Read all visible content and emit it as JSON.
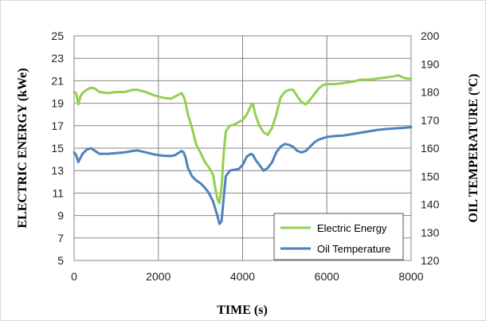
{
  "chart_data": {
    "type": "line",
    "title": "",
    "xlabel": "TIME (s)",
    "ylabel_left": "ELECTRIC  ENERGY (kWe)",
    "ylabel_right": "OIL TEMPERATURE  (ºC)",
    "xlim": [
      0,
      8000
    ],
    "ylim_left": [
      5,
      25
    ],
    "ylim_right": [
      120,
      200
    ],
    "xticks": [
      0,
      2000,
      4000,
      6000,
      8000
    ],
    "yticks_left": [
      5,
      7,
      9,
      11,
      13,
      15,
      17,
      19,
      21,
      23,
      25
    ],
    "yticks_right": [
      120,
      130,
      140,
      150,
      160,
      170,
      180,
      190,
      200
    ],
    "grid": true,
    "legend_position": "bottom-right",
    "series": [
      {
        "name": "Electric Energy",
        "axis": "left",
        "color": "#92d050",
        "x": [
          0,
          50,
          100,
          150,
          200,
          300,
          400,
          500,
          600,
          800,
          1000,
          1200,
          1400,
          1500,
          1700,
          1900,
          2100,
          2300,
          2500,
          2550,
          2600,
          2650,
          2700,
          2800,
          2900,
          3000,
          3100,
          3200,
          3300,
          3350,
          3400,
          3450,
          3500,
          3550,
          3600,
          3700,
          3800,
          3900,
          4000,
          4100,
          4200,
          4250,
          4300,
          4400,
          4500,
          4600,
          4700,
          4800,
          4900,
          5000,
          5100,
          5200,
          5300,
          5400,
          5500,
          5600,
          5700,
          5800,
          5900,
          6000,
          6200,
          6400,
          6600,
          6800,
          7000,
          7200,
          7400,
          7600,
          7700,
          7800,
          7900,
          8000
        ],
        "values": [
          20.0,
          19.9,
          18.9,
          19.6,
          19.9,
          20.2,
          20.4,
          20.3,
          20.0,
          19.9,
          20.0,
          20.0,
          20.2,
          20.2,
          20.0,
          19.7,
          19.5,
          19.4,
          19.8,
          19.9,
          19.6,
          19.0,
          18.0,
          16.8,
          15.3,
          14.6,
          13.8,
          13.3,
          12.6,
          11.5,
          10.5,
          10.1,
          11.5,
          14.5,
          16.5,
          17.0,
          17.1,
          17.3,
          17.5,
          18.0,
          18.8,
          18.9,
          18.0,
          17.0,
          16.4,
          16.2,
          16.8,
          18.0,
          19.5,
          20.0,
          20.2,
          20.2,
          19.6,
          19.1,
          18.9,
          19.3,
          19.8,
          20.3,
          20.6,
          20.7,
          20.7,
          20.8,
          20.9,
          21.1,
          21.1,
          21.2,
          21.3,
          21.4,
          21.5,
          21.3,
          21.2,
          21.2
        ]
      },
      {
        "name": "Oil Temperature",
        "axis": "right",
        "color": "#4f81bd",
        "x": [
          0,
          50,
          100,
          150,
          200,
          300,
          400,
          500,
          600,
          800,
          1000,
          1200,
          1400,
          1500,
          1700,
          1900,
          2100,
          2300,
          2400,
          2500,
          2550,
          2600,
          2650,
          2700,
          2800,
          2900,
          3000,
          3100,
          3200,
          3300,
          3350,
          3400,
          3450,
          3500,
          3550,
          3600,
          3700,
          3800,
          3900,
          4000,
          4100,
          4200,
          4250,
          4300,
          4400,
          4500,
          4600,
          4700,
          4800,
          4900,
          5000,
          5100,
          5200,
          5300,
          5400,
          5500,
          5600,
          5700,
          5800,
          5900,
          6000,
          6200,
          6400,
          6600,
          6800,
          7000,
          7200,
          7400,
          7600,
          7800,
          8000
        ],
        "values": [
          158.5,
          157.5,
          155.0,
          156.5,
          158.0,
          159.5,
          160.0,
          159.0,
          158.0,
          158.0,
          158.2,
          158.5,
          159.0,
          159.2,
          158.5,
          157.8,
          157.3,
          157.2,
          157.5,
          158.5,
          159.0,
          158.5,
          156.5,
          153.0,
          150.0,
          148.5,
          147.5,
          146.0,
          144.0,
          141.0,
          138.5,
          136.0,
          133.0,
          134.0,
          142.0,
          150.0,
          152.0,
          152.3,
          152.5,
          154.0,
          157.0,
          158.0,
          157.5,
          156.0,
          154.0,
          152.0,
          153.0,
          155.0,
          158.5,
          160.5,
          161.5,
          161.2,
          160.5,
          159.0,
          158.5,
          159.0,
          160.5,
          162.0,
          163.0,
          163.5,
          164.0,
          164.3,
          164.5,
          165.0,
          165.5,
          166.0,
          166.5,
          166.8,
          167.0,
          167.2,
          167.5
        ]
      }
    ]
  }
}
